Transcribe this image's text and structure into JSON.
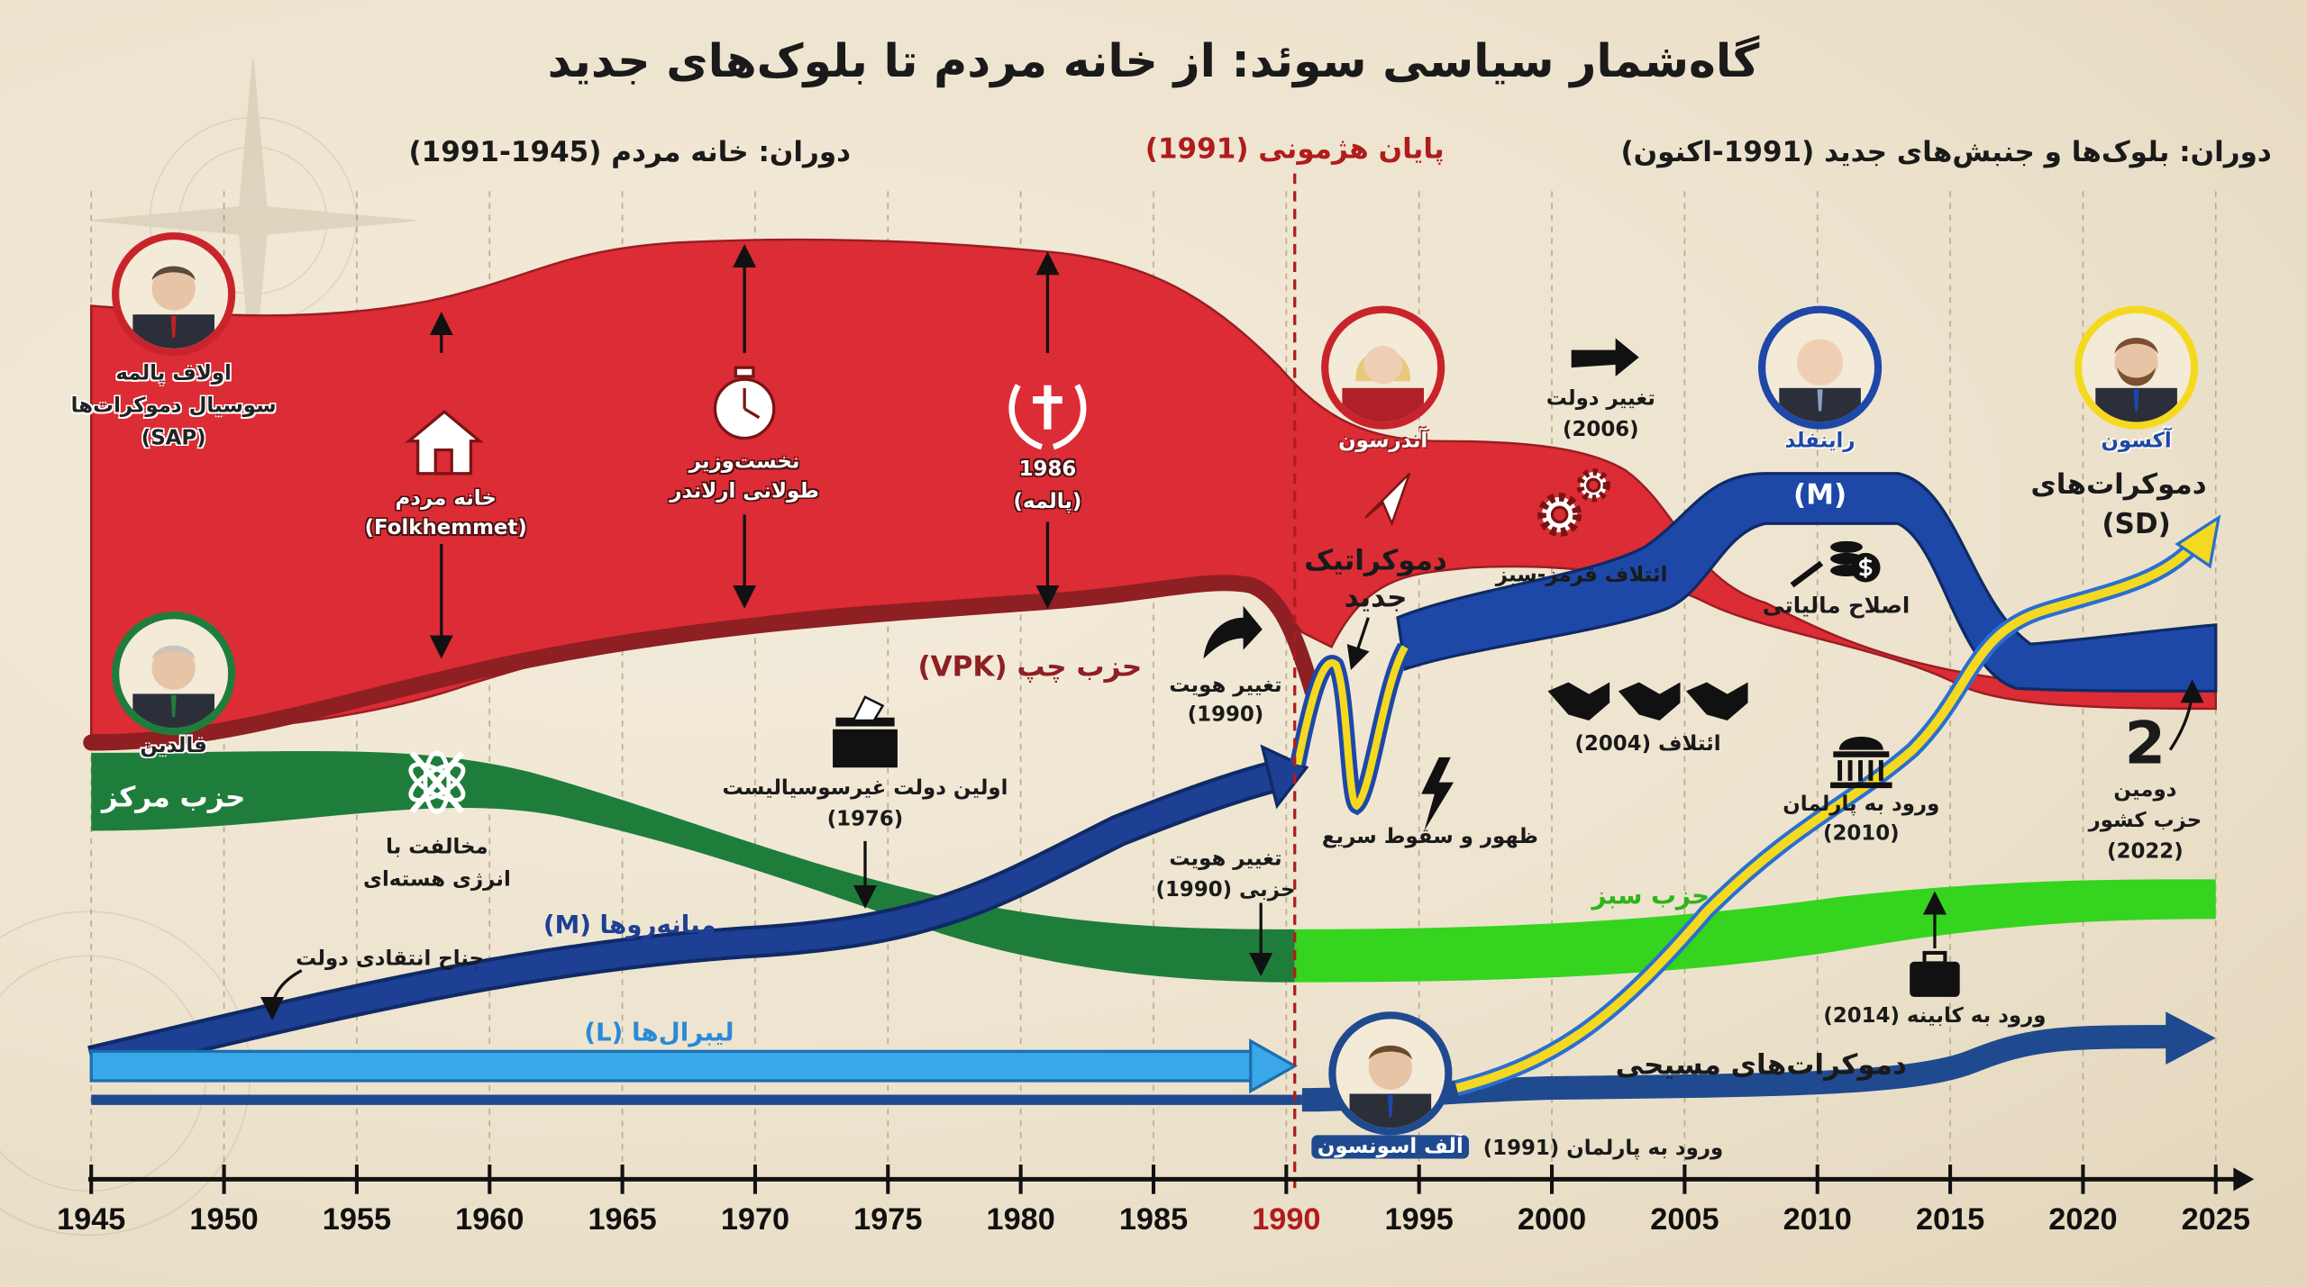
{
  "title": "گاه‌شمار سیاسی سوئد: از خانه مردم تا بلوک‌های جدید",
  "eras": {
    "left": "دوران: خانه مردم (1945-1991)",
    "marker": "پایان هژمونی (1991)",
    "right": "دوران: بلوک‌ها و جنبش‌های جدید (1991-اکنون)"
  },
  "colors": {
    "sap_red": "#dc2c35",
    "vpk_darkred": "#8e1f22",
    "centre_green": "#1f7d3c",
    "green_party": "#35d41f",
    "moderates_navy": "#1d3f94",
    "liberals_blue": "#3aa8e8",
    "kd_blue": "#1f4a8f",
    "sd_yellow": "#f5d920",
    "marker_red": "#b01c1c"
  },
  "portraits": {
    "palme": {
      "name": "اولاف پالمه",
      "party": "سوسیال دموکرات‌ها",
      "abbr": "(SAP)"
    },
    "falldin": {
      "name": "فالدین",
      "party": "حزب مرکز"
    },
    "andersson": {
      "name": "آندرسون"
    },
    "reinfeldt": {
      "name": "راینفلد"
    },
    "akesson": {
      "name": "آکسون"
    },
    "svensson": {
      "name": "آلف اسونسون"
    }
  },
  "annotations": {
    "folkhemmet": {
      "line1": "خانه مردم",
      "line2": "(Folkhemmet)"
    },
    "erlander": {
      "line1": "نخست‌وزیر",
      "line2": "طولانی ارلاندر"
    },
    "palme1986": {
      "line1": "1986",
      "line2": "(پالمه)"
    },
    "gov_change": {
      "line1": "تغییر دولت",
      "line2": "(2006)"
    },
    "new_democracy": {
      "line1": "دموکراتیک",
      "line2": "جدید"
    },
    "red_green": "ائتلاف قرمز-سبز",
    "moderates_band": "(M)",
    "tax_reform": "اصلاح مالیاتی",
    "sd": {
      "line1": "دموکرات‌های",
      "line2": "(SD)"
    },
    "vpk": "حزب چپ (VPK)",
    "vpk_identity": {
      "line1": "تغییر هویت",
      "line2": "(1990)"
    },
    "alliance": "ائتلاف (2004)",
    "anti_nuclear": {
      "line1": "مخالفت با",
      "line2": "انرژی هسته‌ای"
    },
    "first_nonsocialist": {
      "line1": "اولین دولت غیرسوسیالیست",
      "line2": "(1976)"
    },
    "rise_fall": "ظهور و سقوط سریع",
    "sd_parliament": {
      "line1": "ورود به پارلمان",
      "line2": "(2010)"
    },
    "second_party": {
      "number": "2",
      "line1": "دومین",
      "line2": "حزب کشور",
      "line3": "(2022)"
    },
    "centre_identity": {
      "line1": "تغییر هویت",
      "line2": "حزبی (1990)"
    },
    "green_party": "حزب سبز",
    "green_cabinet": "ورود به کابینه (2014)",
    "moderates": "میانه‌روها (M)",
    "critical_wing": "جناح انتقادی دولت",
    "liberals": "لیبرال‌ها (L)",
    "kd": "دموکرات‌های مسیحی",
    "kd_parliament": "ورود به پارلمان (1991)"
  },
  "axis": {
    "years": [
      "1945",
      "1950",
      "1955",
      "1960",
      "1965",
      "1970",
      "1975",
      "1980",
      "1985",
      "1990",
      "1995",
      "2000",
      "2005",
      "2010",
      "2015",
      "2020",
      "2025"
    ],
    "highlight": "1990"
  }
}
